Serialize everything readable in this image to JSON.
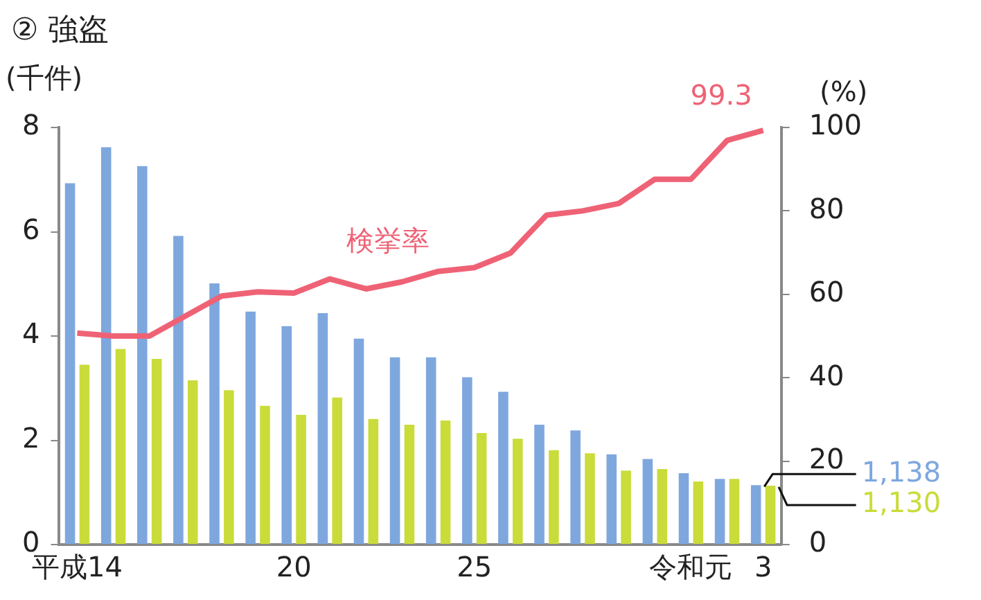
{
  "chart_data": {
    "type": "bar",
    "title": "② 強盗",
    "ylabel": "(千件)",
    "y2label": "(%)",
    "categories": [
      "平成14",
      null,
      null,
      null,
      null,
      null,
      "20",
      null,
      null,
      null,
      null,
      "25",
      null,
      null,
      null,
      null,
      null,
      "令和元",
      null,
      "3"
    ],
    "series": [
      {
        "color": "#7ea7de",
        "values": [
          6.93,
          7.62,
          7.26,
          5.92,
          5.01,
          4.47,
          4.19,
          4.44,
          3.95,
          3.59,
          3.59,
          3.21,
          2.93,
          2.3,
          2.19,
          1.73,
          1.64,
          1.37,
          1.26,
          1.138
        ]
      },
      {
        "color": "#c9dc3a",
        "values": [
          3.45,
          3.75,
          3.56,
          3.15,
          2.96,
          2.66,
          2.49,
          2.82,
          2.41,
          2.3,
          2.38,
          2.14,
          2.03,
          1.81,
          1.75,
          1.42,
          1.45,
          1.21,
          1.26,
          1.13
        ]
      },
      {
        "type": "line",
        "axis": "y2",
        "name": "検挙率",
        "color": "#ef6275",
        "values": [
          50.7,
          50,
          50,
          54.8,
          59.6,
          60.6,
          60.3,
          63.7,
          61.3,
          63,
          65.5,
          66.4,
          69.9,
          79,
          80,
          81.8,
          87.6,
          87.6,
          96.9,
          99.3
        ],
        "value_labels": [
          null,
          null,
          null,
          null,
          null,
          null,
          null,
          null,
          null,
          null,
          null,
          null,
          null,
          null,
          null,
          null,
          null,
          null,
          null,
          "99.3"
        ]
      }
    ],
    "annotations": [
      {
        "text": "1,138",
        "x": "3",
        "y": 1.138
      },
      {
        "text": "1,130",
        "x": "3",
        "y": 1.13
      }
    ],
    "ylim": [
      0,
      8
    ],
    "yticks": [
      0,
      2,
      4,
      6,
      8
    ],
    "y2lim": [
      0,
      100
    ],
    "y2ticks": [
      0,
      20,
      40,
      60,
      80,
      100
    ],
    "grid": false,
    "legend": false,
    "marker": "none"
  }
}
